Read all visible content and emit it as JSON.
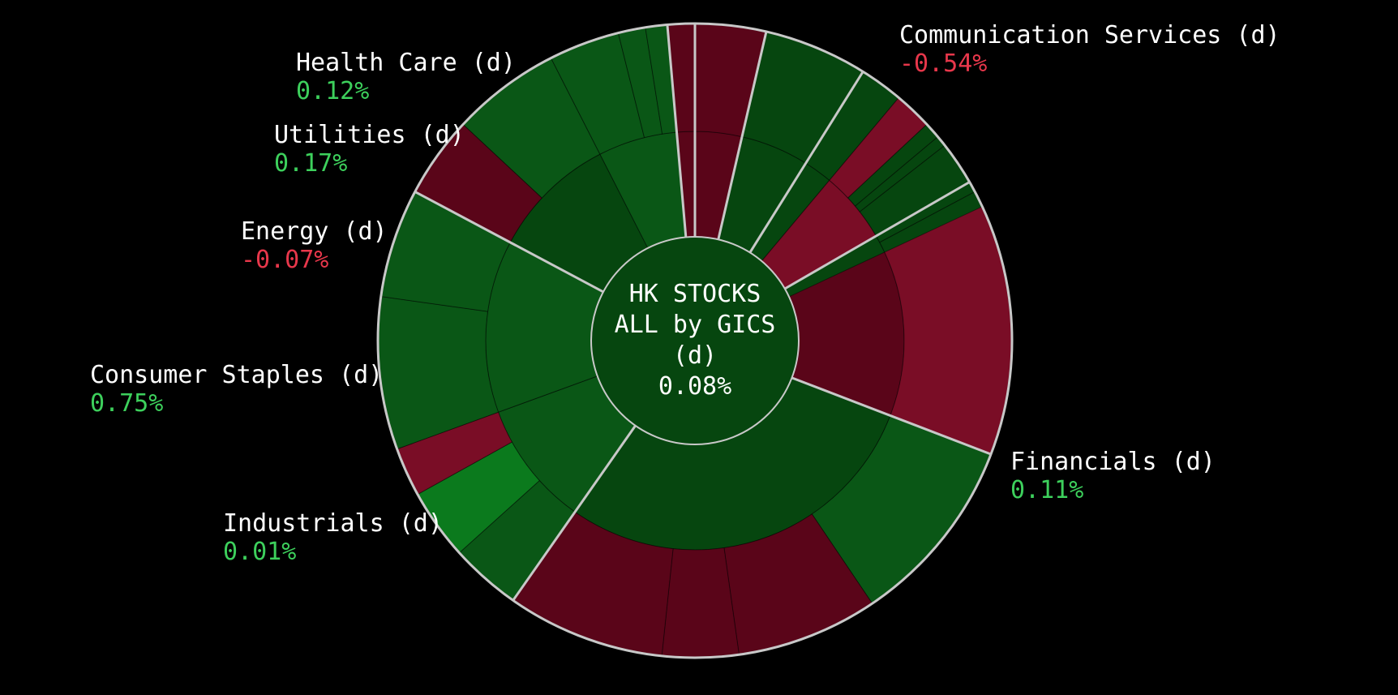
{
  "chart_data": {
    "type": "sunburst",
    "title": "",
    "center": {
      "lines": [
        "HK STOCKS",
        "ALL by GICS",
        "(d)"
      ],
      "value": "0.08%"
    },
    "colors": {
      "positive_text": "#3dd05c",
      "negative_text": "#e8374b",
      "separator": "#c8c8c8",
      "green_dark": "#06460f",
      "green_mid": "#0a5716",
      "green_bright": "#0b7a1d",
      "red_dark": "#5a0519",
      "red_mid": "#7a0d26"
    },
    "sectors": [
      {
        "name": "Communication Services (d)",
        "change": "-0.54%",
        "sign": "negative",
        "angle_from": 0,
        "angle_to": 111,
        "subs": [
          {
            "from": 0,
            "to": 111,
            "color": "red_dark",
            "leaves": [
              {
                "from": 0,
                "to": 63,
                "color": "red_dark"
              },
              {
                "from": 63,
                "to": 111,
                "color": "red_mid"
              }
            ]
          }
        ]
      },
      {
        "name": "Financials (d)",
        "change": "0.11%",
        "sign": "positive",
        "angle_from": 111,
        "angle_to": 215,
        "subs": [
          {
            "from": 111,
            "to": 215,
            "color": "green_dark",
            "leaves": [
              {
                "from": 111,
                "to": 146,
                "color": "green_mid"
              },
              {
                "from": 146,
                "to": 172,
                "color": "red_dark"
              },
              {
                "from": 172,
                "to": 186,
                "color": "red_dark"
              },
              {
                "from": 186,
                "to": 215,
                "color": "red_dark"
              }
            ]
          }
        ]
      },
      {
        "name": "Industrials (d)",
        "change": "0.01%",
        "sign": "positive",
        "angle_from": 215,
        "angle_to": 298,
        "subs": [
          {
            "from": 215,
            "to": 250,
            "color": "green_mid",
            "leaves": [
              {
                "from": 215,
                "to": 228,
                "color": "green_mid"
              },
              {
                "from": 228,
                "to": 241,
                "color": "green_bright"
              },
              {
                "from": 241,
                "to": 250,
                "color": "red_mid"
              }
            ]
          },
          {
            "from": 250,
            "to": 298,
            "color": "green_mid",
            "leaves": [
              {
                "from": 250,
                "to": 278,
                "color": "green_mid"
              },
              {
                "from": 278,
                "to": 298,
                "color": "green_mid"
              }
            ]
          }
        ]
      },
      {
        "name": "Consumer Staples (d)",
        "change": "0.75%",
        "sign": "positive",
        "angle_from": 298,
        "angle_to": 355,
        "subs": [
          {
            "from": 298,
            "to": 333,
            "color": "green_dark",
            "leaves": [
              {
                "from": 298,
                "to": 313,
                "color": "red_dark"
              },
              {
                "from": 313,
                "to": 333,
                "color": "green_mid"
              }
            ]
          },
          {
            "from": 333,
            "to": 355,
            "color": "green_mid",
            "leaves": [
              {
                "from": 333,
                "to": 346,
                "color": "green_mid"
              },
              {
                "from": 346,
                "to": 351,
                "color": "green_mid"
              },
              {
                "from": 351,
                "to": 355,
                "color": "green_mid"
              }
            ]
          }
        ]
      },
      {
        "name": "Energy (d)",
        "change": "-0.07%",
        "sign": "negative",
        "angle_from": 355,
        "angle_to": 373,
        "subs": [
          {
            "from": 355,
            "to": 373,
            "color": "red_dark",
            "leaves": [
              {
                "from": 355,
                "to": 373,
                "color": "red_dark"
              }
            ]
          }
        ]
      },
      {
        "name": "Utilities (d)",
        "change": "0.17%",
        "sign": "positive",
        "angle_from": 373,
        "angle_to": 392,
        "subs": [
          {
            "from": 373,
            "to": 392,
            "color": "green_dark",
            "leaves": [
              {
                "from": 373,
                "to": 392,
                "color": "green_dark"
              }
            ]
          }
        ]
      },
      {
        "name": "Health Care (d)",
        "change": "0.12%",
        "sign": "positive",
        "angle_from": 392,
        "angle_to": 420,
        "subs": [
          {
            "from": 392,
            "to": 400,
            "color": "green_dark",
            "leaves": [
              {
                "from": 392,
                "to": 400,
                "color": "green_dark"
              }
            ]
          },
          {
            "from": 400,
            "to": 420,
            "color": "red_mid",
            "leaves": [
              {
                "from": 400,
                "to": 407,
                "color": "red_mid"
              },
              {
                "from": 407,
                "to": 410,
                "color": "green_dark"
              },
              {
                "from": 410,
                "to": 412,
                "color": "green_dark"
              },
              {
                "from": 412,
                "to": 420,
                "color": "green_dark"
              }
            ]
          }
        ]
      },
      {
        "name": "",
        "change": "",
        "sign": "positive",
        "angle_from": 420,
        "angle_to": 425,
        "subs": [
          {
            "from": 420,
            "to": 425,
            "color": "green_dark",
            "leaves": [
              {
                "from": 420,
                "to": 422,
                "color": "green_dark"
              },
              {
                "from": 422,
                "to": 425,
                "color": "green_dark"
              }
            ]
          }
        ]
      }
    ]
  }
}
